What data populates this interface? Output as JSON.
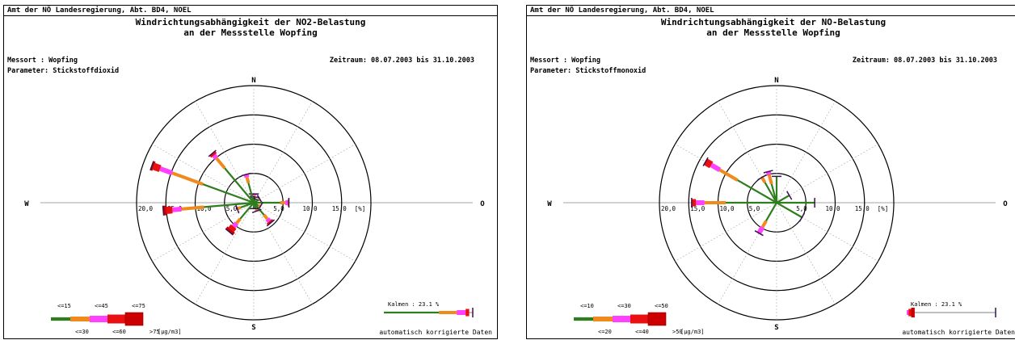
{
  "panels": [
    {
      "header": "Amt der NÖ Landesregierung, Abt. BD4, NOEL",
      "title_line1": "Windrichtungsabhängigkeit der NO2-Belastung",
      "title_line2": "an der Messstelle Wopfing",
      "messort": "Messort : Wopfing",
      "parameter": "Parameter: Stickstoffdioxid",
      "zeitraum": "Zeitraum: 08.07.2003 bis 31.10.2003",
      "footer": "automatisch korrigierte Daten"
    },
    {
      "header": "Amt der NÖ Landesregierung, Abt. BD4, NOEL",
      "title_line1": "Windrichtungsabhängigkeit der NO-Belastung",
      "title_line2": "an der Messstelle Wopfing",
      "messort": "Messort : Wopfing",
      "parameter": "Parameter: Stickstoffmonoxid",
      "zeitraum": "Zeitraum: 08.07.2003 bis 31.10.2003",
      "footer": "automatisch korrigierte Daten"
    }
  ],
  "chart_data": [
    {
      "type": "windrose",
      "compass": [
        "N",
        "O",
        "S",
        "W"
      ],
      "radial_ticks": [
        "5,0",
        "10,0",
        "15,0",
        "20,0"
      ],
      "radial_unit": "[%]",
      "rmax": 20,
      "ring_values": [
        5,
        10,
        15,
        20
      ],
      "colors": [
        "#2e7d1e",
        "#f08a1c",
        "#ff40ff",
        "#e81010",
        "#cc0000"
      ],
      "class_labels_top": [
        "<=15",
        "<=45",
        "<=75"
      ],
      "class_labels_bottom": [
        "<=30",
        "<=60",
        ">75"
      ],
      "unit": "[µg/m3]",
      "kalmen": "Kalmen : 23.1 %",
      "kalmen_segments": [
        0.62,
        0.2,
        0.1,
        0.04,
        0.0
      ],
      "sectors": [
        {
          "angle": 0,
          "value": 1.5,
          "segments": [
            0.6,
            0.2,
            0.1,
            0.1,
            0
          ]
        },
        {
          "angle": 10,
          "value": 1.0,
          "segments": [
            1,
            0,
            0,
            0,
            0
          ]
        },
        {
          "angle": 20,
          "value": 0.7,
          "segments": [
            1,
            0,
            0,
            0,
            0
          ]
        },
        {
          "angle": 60,
          "value": 1.2,
          "segments": [
            0.8,
            0.2,
            0,
            0,
            0
          ]
        },
        {
          "angle": 90,
          "value": 6.0,
          "segments": [
            0.75,
            0.15,
            0.07,
            0.03,
            0
          ]
        },
        {
          "angle": 120,
          "value": 1.3,
          "segments": [
            0.7,
            0.2,
            0.1,
            0,
            0
          ]
        },
        {
          "angle": 140,
          "value": 4.5,
          "segments": [
            0.6,
            0.2,
            0.12,
            0.08,
            0
          ]
        },
        {
          "angle": 160,
          "value": 1.5,
          "segments": [
            0.8,
            0.2,
            0,
            0,
            0
          ]
        },
        {
          "angle": 180,
          "value": 1.0,
          "segments": [
            1,
            0,
            0,
            0,
            0
          ]
        },
        {
          "angle": 220,
          "value": 6.5,
          "segments": [
            0.55,
            0.15,
            0.12,
            0.1,
            0.08
          ]
        },
        {
          "angle": 250,
          "value": 3.0,
          "segments": [
            0.8,
            0.2,
            0,
            0,
            0
          ]
        },
        {
          "angle": 265,
          "value": 15.5,
          "segments": [
            0.55,
            0.25,
            0.1,
            0.07,
            0.03
          ]
        },
        {
          "angle": 290,
          "value": 18.5,
          "segments": [
            0.5,
            0.3,
            0.12,
            0.06,
            0.02
          ]
        },
        {
          "angle": 320,
          "value": 11.0,
          "segments": [
            0.7,
            0.2,
            0.06,
            0.04,
            0
          ]
        },
        {
          "angle": 345,
          "value": 5.0,
          "segments": [
            0.7,
            0.2,
            0.1,
            0,
            0
          ]
        }
      ]
    },
    {
      "type": "windrose",
      "compass": [
        "N",
        "O",
        "S",
        "W"
      ],
      "radial_ticks": [
        "5,0",
        "10,0",
        "15,0",
        "20,0"
      ],
      "radial_unit": "[%]",
      "rmax": 20,
      "ring_values": [
        5,
        10,
        15,
        20
      ],
      "colors": [
        "#2e7d1e",
        "#f08a1c",
        "#ff40ff",
        "#e81010",
        "#cc0000"
      ],
      "class_labels_top": [
        "<=10",
        "<=30",
        "<=50"
      ],
      "class_labels_bottom": [
        "<=20",
        "<=40",
        ">50"
      ],
      "unit": "[µg/m3]",
      "kalmen": "Kalmen : 23.1 %",
      "kalmen_segments": [
        0.0,
        0.0,
        0.02,
        0.03,
        0.04
      ],
      "sectors": [
        {
          "angle": 0,
          "value": 4.5,
          "segments": [
            1,
            0,
            0,
            0,
            0
          ]
        },
        {
          "angle": 60,
          "value": 2.5,
          "segments": [
            1,
            0,
            0,
            0,
            0
          ]
        },
        {
          "angle": 90,
          "value": 6.5,
          "segments": [
            1,
            0,
            0,
            0,
            0
          ]
        },
        {
          "angle": 120,
          "value": 5.0,
          "segments": [
            1,
            0,
            0,
            0,
            0
          ]
        },
        {
          "angle": 210,
          "value": 6.0,
          "segments": [
            0.6,
            0.2,
            0.2,
            0,
            0
          ]
        },
        {
          "angle": 270,
          "value": 14.5,
          "segments": [
            0.6,
            0.25,
            0.1,
            0.05,
            0
          ]
        },
        {
          "angle": 300,
          "value": 14.0,
          "segments": [
            0.55,
            0.25,
            0.12,
            0.08,
            0
          ]
        },
        {
          "angle": 330,
          "value": 5.0,
          "segments": [
            0.8,
            0.2,
            0,
            0,
            0
          ]
        },
        {
          "angle": 345,
          "value": 5.5,
          "segments": [
            0.6,
            0.3,
            0.1,
            0,
            0
          ]
        }
      ]
    }
  ]
}
